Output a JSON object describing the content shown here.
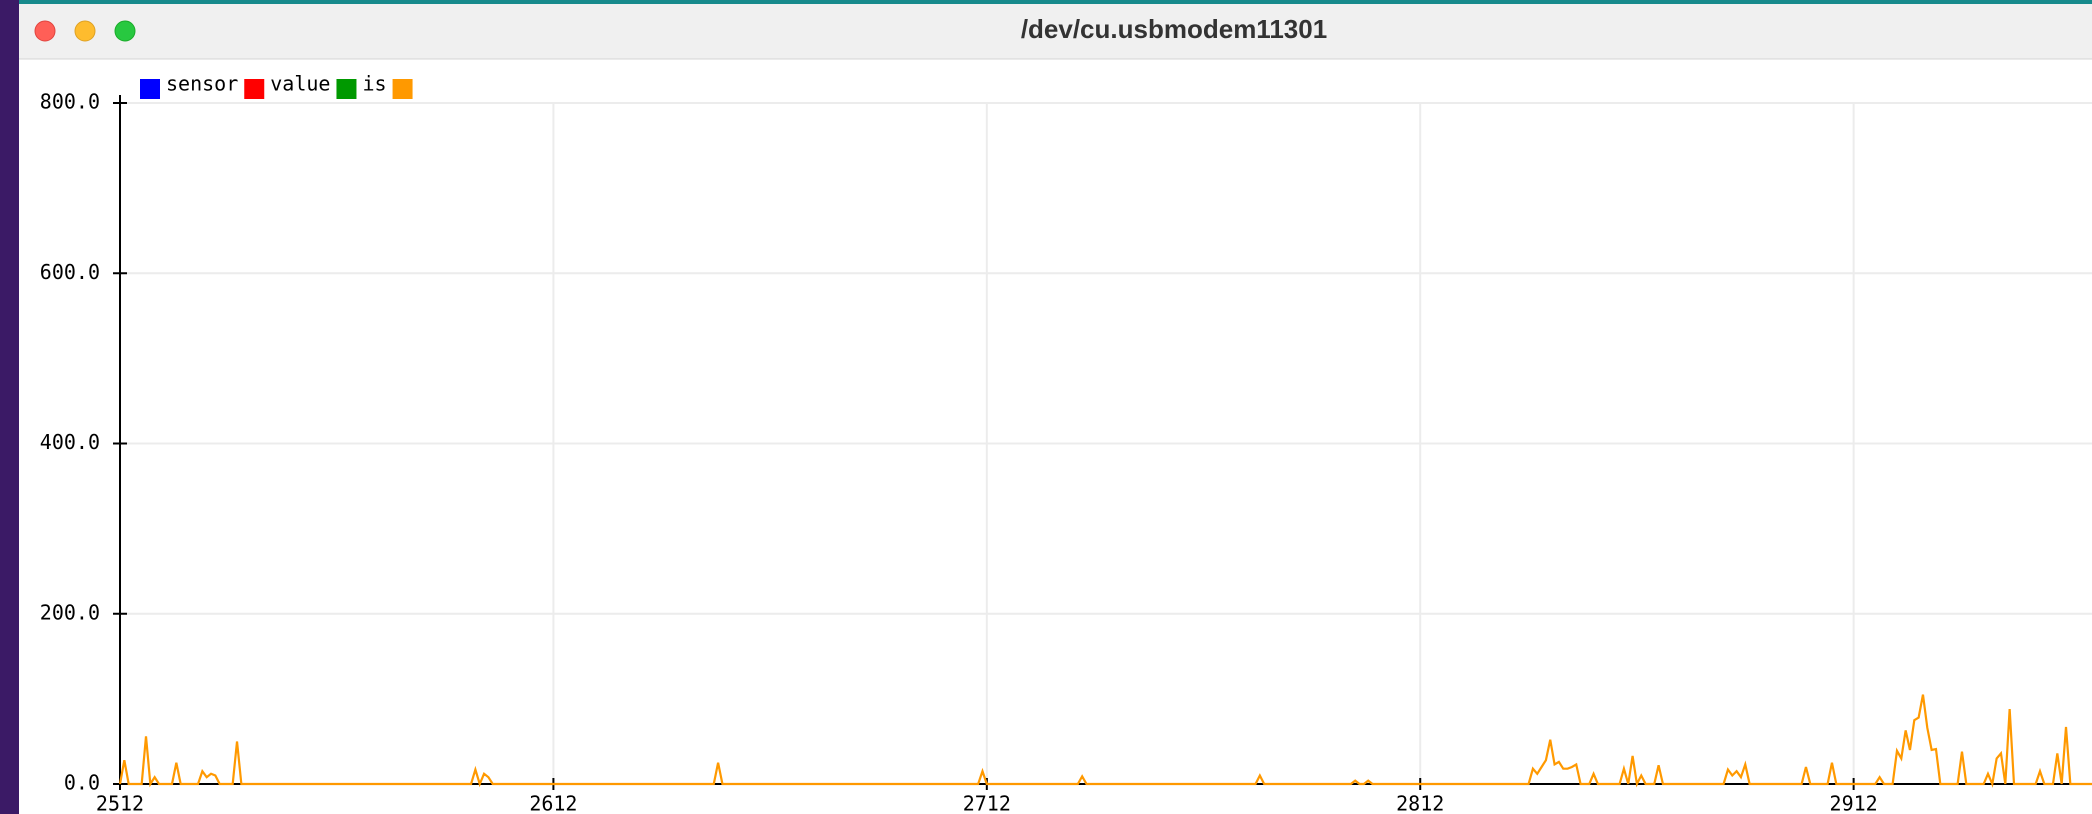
{
  "window": {
    "title": "/dev/cu.usbmodem11301"
  },
  "chart_data": {
    "type": "line",
    "ylim": [
      0,
      800
    ],
    "yticks": [
      {
        "value": 0,
        "label": "0.0"
      },
      {
        "value": 200,
        "label": "200.0"
      },
      {
        "value": 400,
        "label": "400.0"
      },
      {
        "value": 600,
        "label": "600.0"
      },
      {
        "value": 800,
        "label": "800.0"
      }
    ],
    "xlim": [
      2512,
      2967
    ],
    "xticks": [
      2512,
      2612,
      2712,
      2812,
      2912
    ],
    "grid": true,
    "series": [
      {
        "name": "sensor",
        "color": "#0000ff"
      },
      {
        "name": "value",
        "color": "#ff0000"
      },
      {
        "name": "is",
        "color": "#009900"
      },
      {
        "color": "#ff9900",
        "x": [
          2512,
          2513,
          2514,
          2517,
          2518,
          2519,
          2520,
          2521,
          2524,
          2525,
          2526,
          2530,
          2531,
          2532,
          2533,
          2534,
          2535,
          2538,
          2539,
          2540,
          2593,
          2594,
          2595,
          2596,
          2597,
          2598,
          2649,
          2650,
          2651,
          2710,
          2711,
          2712,
          2733,
          2734,
          2735,
          2774,
          2775,
          2776,
          2796,
          2797,
          2798,
          2799,
          2800,
          2801,
          2837,
          2838,
          2839,
          2840,
          2841,
          2842,
          2843,
          2844,
          2845,
          2846,
          2847,
          2848,
          2849,
          2851,
          2852,
          2853,
          2858,
          2859,
          2860,
          2861,
          2862,
          2863,
          2864,
          2866,
          2867,
          2868,
          2882,
          2883,
          2884,
          2885,
          2886,
          2887,
          2888,
          2900,
          2901,
          2902,
          2906,
          2907,
          2908,
          2917,
          2918,
          2919,
          2921,
          2922,
          2923,
          2924,
          2925,
          2926,
          2927,
          2928,
          2929,
          2930,
          2931,
          2932,
          2936,
          2937,
          2938,
          2942,
          2943,
          2944,
          2945,
          2946,
          2947,
          2948,
          2949,
          2954,
          2955,
          2956,
          2958,
          2959,
          2960,
          2961,
          2962,
          2967
        ],
        "values": [
          0,
          28,
          0,
          0,
          56,
          0,
          8,
          0,
          0,
          25,
          0,
          0,
          15,
          8,
          12,
          10,
          0,
          0,
          50,
          0,
          0,
          17,
          0,
          12,
          8,
          0,
          0,
          25,
          0,
          0,
          15,
          0,
          0,
          9,
          0,
          0,
          10,
          0,
          0,
          4,
          0,
          0,
          4,
          0,
          0,
          18,
          12,
          20,
          28,
          52,
          23,
          26,
          18,
          18,
          20,
          23,
          0,
          0,
          12,
          0,
          0,
          18,
          0,
          33,
          0,
          10,
          0,
          0,
          22,
          0,
          0,
          17,
          10,
          15,
          8,
          23,
          0,
          0,
          20,
          0,
          0,
          25,
          0,
          0,
          8,
          0,
          0,
          39,
          30,
          63,
          40,
          75,
          78,
          105,
          66,
          40,
          41,
          0,
          0,
          38,
          0,
          0,
          12,
          0,
          30,
          36,
          0,
          88,
          0,
          0,
          15,
          0,
          0,
          36,
          0,
          67,
          0,
          0
        ]
      }
    ]
  }
}
